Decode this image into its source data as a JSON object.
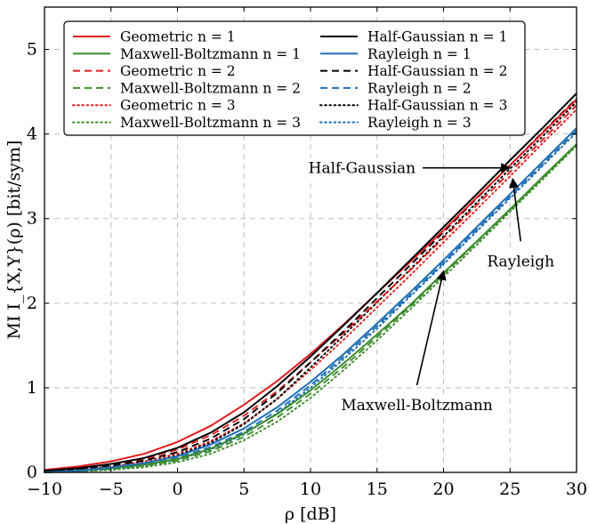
{
  "chart_data": {
    "type": "line",
    "xlabel": "ρ [dB]",
    "ylabel": "MI I_{X,Y}(ρ) [bit/sym]",
    "xlim": [
      -10,
      30
    ],
    "ylim": [
      0,
      5.5
    ],
    "xticks": [
      -10,
      -5,
      0,
      5,
      10,
      15,
      20,
      25,
      30
    ],
    "yticks": [
      0,
      1,
      2,
      3,
      4,
      5
    ],
    "grid": true,
    "legend_position": "top-left",
    "x": [
      -10,
      -7.5,
      -5,
      -2.5,
      0,
      2.5,
      5,
      7.5,
      10,
      12.5,
      15,
      17.5,
      20,
      22.5,
      25,
      27.5,
      30
    ],
    "series": [
      {
        "name": "Geometric n = 1",
        "color": "#e41a1c",
        "style": "solid",
        "values": [
          0.03,
          0.07,
          0.13,
          0.22,
          0.36,
          0.55,
          0.8,
          1.08,
          1.4,
          1.75,
          2.12,
          2.49,
          2.86,
          3.25,
          3.63,
          4.02,
          4.41
        ]
      },
      {
        "name": "Maxwell-Boltzmann n = 1",
        "color": "#3c8c2c",
        "style": "solid",
        "values": [
          0.0,
          0.02,
          0.05,
          0.09,
          0.16,
          0.28,
          0.46,
          0.69,
          0.97,
          1.29,
          1.63,
          1.98,
          2.36,
          2.73,
          3.11,
          3.5,
          3.88
        ]
      },
      {
        "name": "Geometric n = 2",
        "color": "#e41a1c",
        "style": "dashed",
        "values": [
          0.02,
          0.05,
          0.09,
          0.16,
          0.27,
          0.44,
          0.67,
          0.96,
          1.3,
          1.65,
          2.02,
          2.39,
          2.77,
          3.16,
          3.55,
          3.94,
          4.34
        ]
      },
      {
        "name": "Maxwell-Boltzmann n = 2",
        "color": "#3c8c2c",
        "style": "dashed",
        "values": [
          0.0,
          0.01,
          0.04,
          0.08,
          0.14,
          0.25,
          0.42,
          0.65,
          0.93,
          1.25,
          1.6,
          1.96,
          2.34,
          2.72,
          3.1,
          3.49,
          3.87
        ]
      },
      {
        "name": "Geometric n = 3",
        "color": "#e41a1c",
        "style": "dotted",
        "values": [
          0.02,
          0.04,
          0.07,
          0.13,
          0.22,
          0.37,
          0.58,
          0.87,
          1.21,
          1.57,
          1.95,
          2.33,
          2.72,
          3.11,
          3.5,
          3.9,
          4.29
        ]
      },
      {
        "name": "Maxwell-Boltzmann n = 3",
        "color": "#3c8c2c",
        "style": "dotted",
        "values": [
          0.0,
          0.01,
          0.03,
          0.06,
          0.12,
          0.22,
          0.38,
          0.6,
          0.88,
          1.21,
          1.56,
          1.93,
          2.31,
          2.69,
          3.08,
          3.47,
          3.86
        ]
      },
      {
        "name": "Half-Gaussian n = 1",
        "color": "#000000",
        "style": "solid",
        "values": [
          0.02,
          0.05,
          0.1,
          0.17,
          0.29,
          0.47,
          0.71,
          1.02,
          1.37,
          1.74,
          2.12,
          2.51,
          2.9,
          3.29,
          3.69,
          4.08,
          4.48
        ]
      },
      {
        "name": "Rayleigh n = 1",
        "color": "#1f6fb5",
        "style": "solid",
        "values": [
          0.0,
          0.02,
          0.06,
          0.11,
          0.19,
          0.33,
          0.52,
          0.77,
          1.07,
          1.4,
          1.76,
          2.13,
          2.51,
          2.9,
          3.29,
          3.68,
          4.07
        ]
      },
      {
        "name": "Half-Gaussian n = 2",
        "color": "#000000",
        "style": "dashed",
        "values": [
          0.01,
          0.04,
          0.08,
          0.14,
          0.24,
          0.4,
          0.63,
          0.94,
          1.3,
          1.67,
          2.06,
          2.45,
          2.84,
          3.24,
          3.63,
          4.03,
          4.42
        ]
      },
      {
        "name": "Rayleigh n = 2",
        "color": "#1f6fb5",
        "style": "dashed",
        "values": [
          0.0,
          0.02,
          0.05,
          0.09,
          0.17,
          0.3,
          0.48,
          0.73,
          1.03,
          1.37,
          1.73,
          2.1,
          2.48,
          2.87,
          3.26,
          3.65,
          4.04
        ]
      },
      {
        "name": "Half-Gaussian n = 3",
        "color": "#000000",
        "style": "dotted",
        "values": [
          0.01,
          0.03,
          0.06,
          0.11,
          0.2,
          0.35,
          0.57,
          0.87,
          1.24,
          1.62,
          2.01,
          2.4,
          2.79,
          3.19,
          3.59,
          3.98,
          4.38
        ]
      },
      {
        "name": "Rayleigh n = 3",
        "color": "#1f6fb5",
        "style": "dotted",
        "values": [
          0.0,
          0.01,
          0.04,
          0.08,
          0.15,
          0.27,
          0.45,
          0.7,
          1.0,
          1.34,
          1.7,
          2.08,
          2.46,
          2.85,
          3.24,
          3.63,
          4.02
        ]
      }
    ],
    "annotations": [
      {
        "text": "Half-Gaussian",
        "target": [
          25,
          3.6
        ],
        "label_at": [
          17.9,
          3.6
        ],
        "anchor": "end"
      },
      {
        "text": "Rayleigh",
        "target": [
          25.2,
          3.47
        ],
        "label_at": [
          25.8,
          2.5
        ],
        "anchor": "middle"
      },
      {
        "text": "Maxwell-Boltzmann",
        "target": [
          20,
          2.38
        ],
        "label_at": [
          18,
          0.8
        ],
        "anchor": "middle"
      }
    ]
  }
}
